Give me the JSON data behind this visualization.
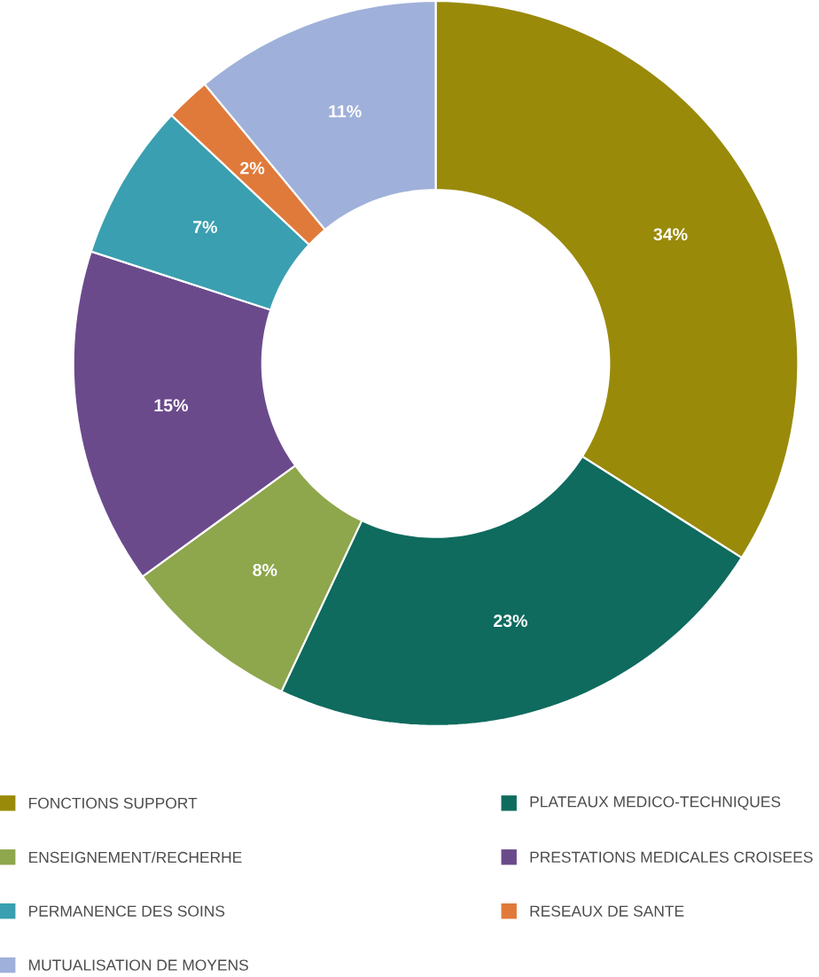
{
  "chart_data": {
    "type": "donut",
    "categories": [
      "FONCTIONS SUPPORT",
      "PLATEAUX MEDICO-TECHNIQUES",
      "ENSEIGNEMENT/RECHERHE",
      "PRESTATIONS MEDICALES CROISEES",
      "PERMANENCE DES SOINS",
      "RESEAUX DE SANTE",
      "MUTUALISATION DE MOYENS"
    ],
    "values": [
      34,
      23,
      8,
      15,
      7,
      2,
      11
    ],
    "value_labels": [
      "34%",
      "23%",
      "8%",
      "15%",
      "7%",
      "2%",
      "11%"
    ],
    "colors": [
      "#9a8a0a",
      "#0e6b5e",
      "#8ea64c",
      "#6b4a8c",
      "#3a9fb0",
      "#e07a3a",
      "#9fb0da"
    ],
    "legend": "bottom"
  }
}
